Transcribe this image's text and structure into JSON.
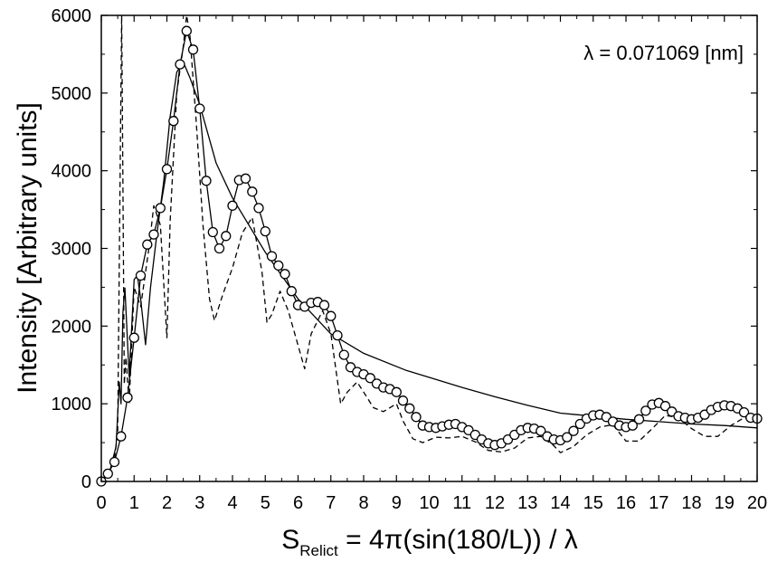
{
  "chart_data": {
    "type": "line",
    "title": "",
    "ylabel": "Intensity [Arbitrary units]",
    "xlabel": {
      "main": "S",
      "subscript": "Relict",
      "rest": " = 4π(sin(180/L)) / λ"
    },
    "annotation": "λ = 0.071069 [nm]",
    "xlim": [
      0,
      20
    ],
    "ylim": [
      0,
      6000
    ],
    "x_ticks": [
      0,
      1,
      2,
      3,
      4,
      5,
      6,
      7,
      8,
      9,
      10,
      11,
      12,
      13,
      14,
      15,
      16,
      17,
      18,
      19,
      20
    ],
    "y_ticks": [
      0,
      1000,
      2000,
      3000,
      4000,
      5000,
      6000
    ],
    "legend": "none",
    "grid": false,
    "series": [
      {
        "style": "circles",
        "x": [
          0.0,
          0.2,
          0.4,
          0.6,
          0.8,
          1.0,
          1.2,
          1.4,
          1.6,
          1.8,
          2.0,
          2.2,
          2.4,
          2.6,
          2.8,
          3.0,
          3.2,
          3.4,
          3.6,
          3.8,
          4.0,
          4.2,
          4.4,
          4.6,
          4.8,
          5.0,
          5.2,
          5.4,
          5.6,
          5.8,
          6.0,
          6.2,
          6.4,
          6.6,
          6.8,
          7.0,
          7.2,
          7.4,
          7.6,
          7.8,
          8.0,
          8.2,
          8.4,
          8.6,
          8.8,
          9.0,
          9.2,
          9.4,
          9.6,
          9.8,
          10.0,
          10.2,
          10.4,
          10.6,
          10.8,
          11.0,
          11.2,
          11.4,
          11.6,
          11.8,
          12.0,
          12.2,
          12.4,
          12.6,
          12.8,
          13.0,
          13.2,
          13.4,
          13.6,
          13.8,
          14.0,
          14.2,
          14.4,
          14.6,
          14.8,
          15.0,
          15.2,
          15.4,
          15.6,
          15.8,
          16.0,
          16.2,
          16.4,
          16.6,
          16.8,
          17.0,
          17.2,
          17.4,
          17.6,
          17.8,
          18.0,
          18.2,
          18.4,
          18.6,
          18.8,
          19.0,
          19.2,
          19.4,
          19.6,
          19.8,
          20.0
        ],
        "y": [
          0,
          100,
          250,
          580,
          1080,
          1850,
          2650,
          3050,
          3180,
          3520,
          4020,
          4640,
          5370,
          5800,
          5560,
          4800,
          3870,
          3210,
          3000,
          3160,
          3550,
          3880,
          3900,
          3730,
          3520,
          3220,
          2900,
          2780,
          2670,
          2450,
          2270,
          2250,
          2300,
          2310,
          2270,
          2130,
          1880,
          1630,
          1470,
          1410,
          1380,
          1330,
          1260,
          1210,
          1190,
          1150,
          1040,
          940,
          830,
          720,
          700,
          690,
          710,
          730,
          740,
          700,
          660,
          600,
          540,
          490,
          470,
          490,
          540,
          600,
          660,
          690,
          680,
          650,
          580,
          540,
          530,
          570,
          650,
          740,
          810,
          850,
          860,
          830,
          770,
          720,
          700,
          720,
          800,
          910,
          990,
          1010,
          970,
          900,
          840,
          820,
          800,
          820,
          860,
          920,
          960,
          980,
          970,
          940,
          890,
          820,
          810
        ]
      },
      {
        "style": "solid",
        "x": [
          0.0,
          0.25,
          0.45,
          0.55,
          0.6,
          0.66,
          0.72,
          0.85,
          1.0,
          1.1,
          1.2,
          1.35,
          1.5,
          1.7,
          1.9,
          2.1,
          2.3,
          2.5,
          2.7,
          3.0,
          3.5,
          4.0,
          5.0,
          6.0,
          7.0,
          8.0,
          9.3,
          10.0,
          11.0,
          12.0,
          13.0,
          14.0,
          15.0,
          16.0,
          17.0,
          18.0,
          19.0,
          20.0
        ],
        "y": [
          0,
          120,
          450,
          1280,
          1000,
          2180,
          2490,
          1350,
          2600,
          2650,
          2350,
          1760,
          2500,
          3200,
          3850,
          4700,
          5270,
          5400,
          5200,
          4850,
          4100,
          3650,
          2950,
          2350,
          1900,
          1650,
          1430,
          1340,
          1210,
          1090,
          980,
          880,
          840,
          800,
          770,
          740,
          720,
          690
        ]
      },
      {
        "style": "dashed",
        "x": [
          0.0,
          0.2,
          0.4,
          0.5,
          0.58,
          0.62,
          0.66,
          0.7,
          0.75,
          0.85,
          1.0,
          1.2,
          1.45,
          1.6,
          1.8,
          2.0,
          2.1,
          2.3,
          2.5,
          2.6,
          2.7,
          2.9,
          3.1,
          3.3,
          3.45,
          3.7,
          4.0,
          4.3,
          4.6,
          4.9,
          5.05,
          5.2,
          5.45,
          5.7,
          5.9,
          6.2,
          6.4,
          6.75,
          7.0,
          7.3,
          7.5,
          7.8,
          8.0,
          8.3,
          8.6,
          9.0,
          9.2,
          9.5,
          9.8,
          10.2,
          10.6,
          11.0,
          11.4,
          11.8,
          12.2,
          12.6,
          13.0,
          13.4,
          13.8,
          14.0,
          14.4,
          14.8,
          15.2,
          15.6,
          16.0,
          16.4,
          16.8,
          17.2,
          17.6,
          18.0,
          18.4,
          18.8,
          19.2,
          19.6,
          20.0
        ],
        "y": [
          0,
          80,
          280,
          650,
          4200,
          6000,
          3800,
          1250,
          1600,
          1000,
          2500,
          2250,
          3000,
          3550,
          3300,
          1850,
          3350,
          5000,
          5600,
          6000,
          5750,
          4600,
          3300,
          2350,
          2070,
          2400,
          2750,
          3200,
          3400,
          2700,
          2050,
          2150,
          2450,
          2200,
          1900,
          1450,
          1900,
          2200,
          1900,
          1000,
          1150,
          1280,
          1150,
          950,
          900,
          1000,
          780,
          550,
          500,
          570,
          560,
          580,
          510,
          400,
          380,
          430,
          560,
          580,
          460,
          370,
          450,
          600,
          700,
          730,
          520,
          520,
          680,
          850,
          820,
          680,
          580,
          580,
          720,
          820,
          780
        ]
      }
    ]
  }
}
